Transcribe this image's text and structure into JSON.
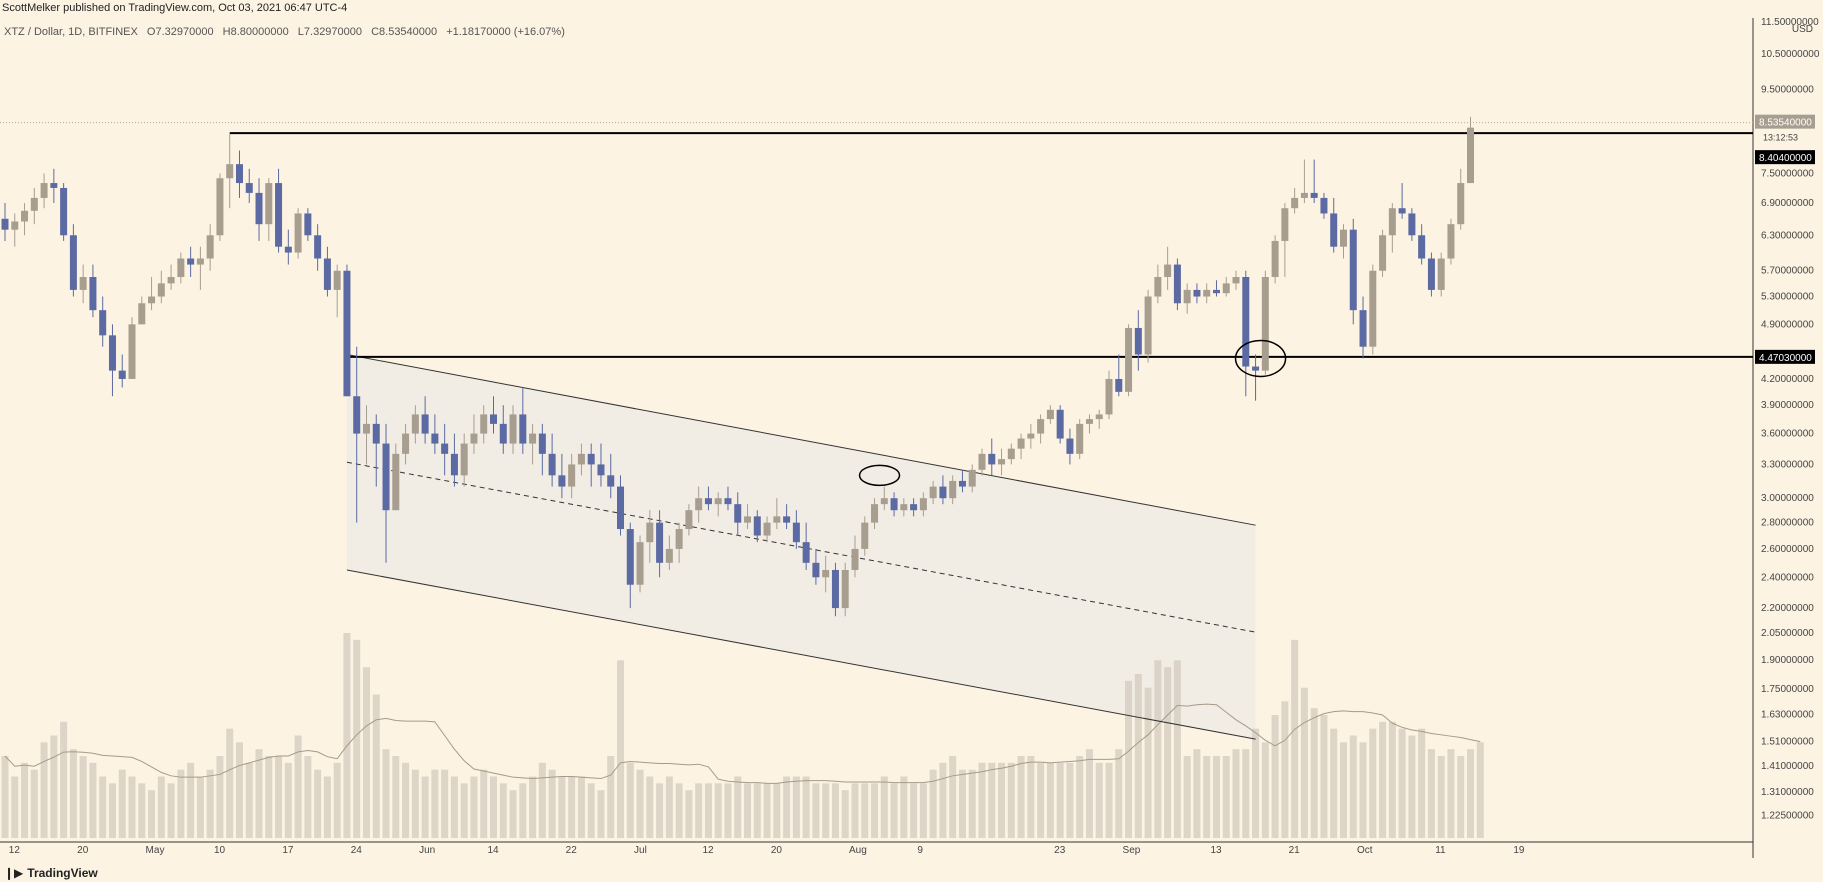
{
  "header": {
    "publisher": "ScottMelker published on TradingView.com, Oct 03, 2021 06:47 UTC-4"
  },
  "symbol": {
    "name": "XTZ / Dollar, 1D, BITFINEX",
    "open": "O7.32970000",
    "high": "H8.80000000",
    "low": "L7.32970000",
    "close": "C8.53540000",
    "change": "+1.18170000 (+16.07%)"
  },
  "currency": "USD",
  "footer": {
    "logo": "TradingView"
  },
  "colors": {
    "background": "#FCF3E3",
    "bull": "#A79E8F",
    "bear": "#5B6AA3",
    "volume": "#D7CFC2",
    "channel_fill": "#F0EBE3",
    "line": "#000000"
  },
  "price_labels": {
    "current": "8.53540000",
    "countdown": "13:12:53",
    "resistance": "8.40400000",
    "support": "4.47030000"
  },
  "chart_data": {
    "type": "candlestick",
    "title": "XTZ / Dollar, 1D, BITFINEX",
    "y_scale": "log",
    "ylim": [
      1.15,
      11.5
    ],
    "y_ticks": [
      "11.50000000",
      "10.50000000",
      "9.50000000",
      "8.40400000",
      "7.50000000",
      "6.90000000",
      "6.30000000",
      "5.70000000",
      "5.30000000",
      "4.90000000",
      "4.47030000",
      "4.20000000",
      "3.90000000",
      "3.60000000",
      "3.30000000",
      "3.00000000",
      "2.80000000",
      "2.60000000",
      "2.40000000",
      "2.20000000",
      "2.05000000",
      "1.90000000",
      "1.75000000",
      "1.63000000",
      "1.51000000",
      "1.41000000",
      "1.31000000",
      "1.22500000"
    ],
    "x_ticks": [
      "12",
      "20",
      "May",
      "10",
      "17",
      "24",
      "Jun",
      "14",
      "22",
      "Jul",
      "12",
      "20",
      "Aug",
      "9",
      "23",
      "Sep",
      "13",
      "21",
      "Oct",
      "11",
      "19"
    ],
    "horizontal_levels": [
      8.404,
      4.4703
    ],
    "candles": [
      [
        6.6,
        6.9,
        6.2,
        6.4
      ],
      [
        6.4,
        6.7,
        6.1,
        6.55
      ],
      [
        6.55,
        6.9,
        6.3,
        6.75
      ],
      [
        6.75,
        7.2,
        6.5,
        7.0
      ],
      [
        7.0,
        7.5,
        6.8,
        7.3
      ],
      [
        7.3,
        7.6,
        6.9,
        7.2
      ],
      [
        7.2,
        7.3,
        6.2,
        6.3
      ],
      [
        6.3,
        6.5,
        5.3,
        5.4
      ],
      [
        5.4,
        5.8,
        5.2,
        5.6
      ],
      [
        5.6,
        5.8,
        5.0,
        5.1
      ],
      [
        5.1,
        5.3,
        4.6,
        4.75
      ],
      [
        4.75,
        4.9,
        4.0,
        4.3
      ],
      [
        4.3,
        4.5,
        4.1,
        4.2
      ],
      [
        4.2,
        5.0,
        4.2,
        4.9
      ],
      [
        4.9,
        5.3,
        4.9,
        5.2
      ],
      [
        5.2,
        5.6,
        5.1,
        5.3
      ],
      [
        5.3,
        5.7,
        5.2,
        5.5
      ],
      [
        5.5,
        5.8,
        5.4,
        5.6
      ],
      [
        5.6,
        6.0,
        5.5,
        5.9
      ],
      [
        5.9,
        6.1,
        5.6,
        5.8
      ],
      [
        5.8,
        6.1,
        5.4,
        5.9
      ],
      [
        5.9,
        6.5,
        5.7,
        6.3
      ],
      [
        6.3,
        7.5,
        6.2,
        7.4
      ],
      [
        7.4,
        8.4,
        6.8,
        7.7
      ],
      [
        7.7,
        8.0,
        7.0,
        7.3
      ],
      [
        7.3,
        7.6,
        6.9,
        7.1
      ],
      [
        7.1,
        7.4,
        6.2,
        6.5
      ],
      [
        6.5,
        7.4,
        6.2,
        7.3
      ],
      [
        7.3,
        7.6,
        6.0,
        6.1
      ],
      [
        6.1,
        6.4,
        5.8,
        6.0
      ],
      [
        6.0,
        6.8,
        5.9,
        6.7
      ],
      [
        6.7,
        6.8,
        6.2,
        6.3
      ],
      [
        6.3,
        6.5,
        5.7,
        5.9
      ],
      [
        5.9,
        6.1,
        5.3,
        5.4
      ],
      [
        5.4,
        5.8,
        5.0,
        5.7
      ],
      [
        5.7,
        5.8,
        4.0,
        4.0
      ],
      [
        4.0,
        4.6,
        2.8,
        3.6
      ],
      [
        3.6,
        3.9,
        3.3,
        3.7
      ],
      [
        3.7,
        3.8,
        3.1,
        3.5
      ],
      [
        3.5,
        3.7,
        2.5,
        2.9
      ],
      [
        2.9,
        3.5,
        2.9,
        3.4
      ],
      [
        3.4,
        3.7,
        3.3,
        3.6
      ],
      [
        3.6,
        3.9,
        3.5,
        3.8
      ],
      [
        3.8,
        4.0,
        3.5,
        3.6
      ],
      [
        3.6,
        3.8,
        3.4,
        3.5
      ],
      [
        3.5,
        3.7,
        3.2,
        3.4
      ],
      [
        3.4,
        3.6,
        3.1,
        3.2
      ],
      [
        3.2,
        3.6,
        3.1,
        3.5
      ],
      [
        3.5,
        3.8,
        3.4,
        3.6
      ],
      [
        3.6,
        3.9,
        3.5,
        3.8
      ],
      [
        3.8,
        4.0,
        3.6,
        3.7
      ],
      [
        3.7,
        3.9,
        3.4,
        3.5
      ],
      [
        3.5,
        3.9,
        3.4,
        3.8
      ],
      [
        3.8,
        4.1,
        3.4,
        3.5
      ],
      [
        3.5,
        3.7,
        3.3,
        3.6
      ],
      [
        3.6,
        3.7,
        3.2,
        3.4
      ],
      [
        3.4,
        3.6,
        3.1,
        3.2
      ],
      [
        3.2,
        3.4,
        3.0,
        3.1
      ],
      [
        3.1,
        3.4,
        3.0,
        3.3
      ],
      [
        3.3,
        3.5,
        3.2,
        3.4
      ],
      [
        3.4,
        3.5,
        3.1,
        3.3
      ],
      [
        3.3,
        3.5,
        3.1,
        3.2
      ],
      [
        3.2,
        3.4,
        3.0,
        3.1
      ],
      [
        3.1,
        3.2,
        2.7,
        2.75
      ],
      [
        2.75,
        2.8,
        2.2,
        2.35
      ],
      [
        2.35,
        2.7,
        2.3,
        2.65
      ],
      [
        2.65,
        2.9,
        2.5,
        2.8
      ],
      [
        2.8,
        2.9,
        2.4,
        2.5
      ],
      [
        2.5,
        2.7,
        2.45,
        2.6
      ],
      [
        2.6,
        2.8,
        2.5,
        2.75
      ],
      [
        2.75,
        2.95,
        2.7,
        2.9
      ],
      [
        2.9,
        3.1,
        2.8,
        3.0
      ],
      [
        3.0,
        3.1,
        2.9,
        2.95
      ],
      [
        2.95,
        3.05,
        2.85,
        3.0
      ],
      [
        3.0,
        3.1,
        2.9,
        2.95
      ],
      [
        2.95,
        3.05,
        2.7,
        2.8
      ],
      [
        2.8,
        2.95,
        2.75,
        2.85
      ],
      [
        2.85,
        2.9,
        2.65,
        2.7
      ],
      [
        2.7,
        2.85,
        2.65,
        2.8
      ],
      [
        2.8,
        3.0,
        2.75,
        2.85
      ],
      [
        2.85,
        2.95,
        2.75,
        2.8
      ],
      [
        2.8,
        2.9,
        2.6,
        2.65
      ],
      [
        2.65,
        2.8,
        2.45,
        2.5
      ],
      [
        2.5,
        2.6,
        2.35,
        2.4
      ],
      [
        2.4,
        2.55,
        2.3,
        2.45
      ],
      [
        2.45,
        2.5,
        2.15,
        2.2
      ],
      [
        2.2,
        2.5,
        2.15,
        2.45
      ],
      [
        2.45,
        2.7,
        2.4,
        2.6
      ],
      [
        2.6,
        2.85,
        2.55,
        2.8
      ],
      [
        2.8,
        3.0,
        2.75,
        2.95
      ],
      [
        2.95,
        3.1,
        2.9,
        3.0
      ],
      [
        3.0,
        3.05,
        2.85,
        2.9
      ],
      [
        2.9,
        3.0,
        2.85,
        2.95
      ],
      [
        2.95,
        3.0,
        2.85,
        2.9
      ],
      [
        2.9,
        3.05,
        2.85,
        3.0
      ],
      [
        3.0,
        3.15,
        2.95,
        3.1
      ],
      [
        3.1,
        3.2,
        2.95,
        3.0
      ],
      [
        3.0,
        3.2,
        2.95,
        3.15
      ],
      [
        3.15,
        3.25,
        3.05,
        3.1
      ],
      [
        3.1,
        3.3,
        3.05,
        3.25
      ],
      [
        3.25,
        3.45,
        3.2,
        3.4
      ],
      [
        3.4,
        3.55,
        3.2,
        3.3
      ],
      [
        3.3,
        3.45,
        3.2,
        3.35
      ],
      [
        3.35,
        3.5,
        3.3,
        3.45
      ],
      [
        3.45,
        3.6,
        3.35,
        3.55
      ],
      [
        3.55,
        3.7,
        3.45,
        3.6
      ],
      [
        3.6,
        3.8,
        3.5,
        3.75
      ],
      [
        3.75,
        3.9,
        3.7,
        3.85
      ],
      [
        3.85,
        3.9,
        3.5,
        3.55
      ],
      [
        3.55,
        3.65,
        3.3,
        3.4
      ],
      [
        3.4,
        3.75,
        3.35,
        3.7
      ],
      [
        3.7,
        3.8,
        3.6,
        3.75
      ],
      [
        3.75,
        3.85,
        3.65,
        3.8
      ],
      [
        3.8,
        4.3,
        3.75,
        4.2
      ],
      [
        4.2,
        4.5,
        4.0,
        4.05
      ],
      [
        4.05,
        4.9,
        4.0,
        4.85
      ],
      [
        4.85,
        5.1,
        4.3,
        4.5
      ],
      [
        4.5,
        5.4,
        4.4,
        5.3
      ],
      [
        5.3,
        5.8,
        5.2,
        5.6
      ],
      [
        5.6,
        6.1,
        5.4,
        5.8
      ],
      [
        5.8,
        5.9,
        5.1,
        5.2
      ],
      [
        5.2,
        5.5,
        5.05,
        5.4
      ],
      [
        5.4,
        5.5,
        5.2,
        5.3
      ],
      [
        5.3,
        5.5,
        5.2,
        5.4
      ],
      [
        5.4,
        5.55,
        5.3,
        5.35
      ],
      [
        5.35,
        5.6,
        5.3,
        5.5
      ],
      [
        5.5,
        5.7,
        5.4,
        5.6
      ],
      [
        5.6,
        5.7,
        4.0,
        4.35
      ],
      [
        4.35,
        4.5,
        3.95,
        4.3
      ],
      [
        4.3,
        5.7,
        4.25,
        5.6
      ],
      [
        5.6,
        6.3,
        5.5,
        6.2
      ],
      [
        6.2,
        6.9,
        5.6,
        6.8
      ],
      [
        6.8,
        7.2,
        6.7,
        7.0
      ],
      [
        7.0,
        7.8,
        6.9,
        7.1
      ],
      [
        7.1,
        7.8,
        6.9,
        7.0
      ],
      [
        7.0,
        7.1,
        6.6,
        6.7
      ],
      [
        6.7,
        7.0,
        6.0,
        6.1
      ],
      [
        6.1,
        6.5,
        5.9,
        6.4
      ],
      [
        6.4,
        6.6,
        4.9,
        5.1
      ],
      [
        5.1,
        5.3,
        4.45,
        4.6
      ],
      [
        4.6,
        5.8,
        4.5,
        5.7
      ],
      [
        5.7,
        6.4,
        5.6,
        6.3
      ],
      [
        6.3,
        6.9,
        6.0,
        6.8
      ],
      [
        6.8,
        7.3,
        6.6,
        6.7
      ],
      [
        6.7,
        6.8,
        6.2,
        6.3
      ],
      [
        6.3,
        6.5,
        5.8,
        5.9
      ],
      [
        5.9,
        6.0,
        5.3,
        5.4
      ],
      [
        5.4,
        6.0,
        5.3,
        5.9
      ],
      [
        5.9,
        6.6,
        5.8,
        6.5
      ],
      [
        6.5,
        7.6,
        6.4,
        7.3
      ],
      [
        7.3,
        8.8,
        7.3,
        8.5354
      ]
    ],
    "volume": [
      12,
      9,
      11,
      10,
      14,
      15,
      17,
      13,
      12,
      11,
      9,
      8,
      10,
      9,
      8,
      7,
      9,
      8,
      10,
      11,
      9,
      10,
      12,
      16,
      14,
      11,
      13,
      12,
      12,
      11,
      15,
      12,
      10,
      9,
      11,
      30,
      29,
      25,
      21,
      13,
      12,
      11,
      10,
      9,
      10,
      10,
      9,
      8,
      9,
      10,
      9,
      8,
      7,
      8,
      9,
      11,
      10,
      9,
      9,
      9,
      8,
      7,
      12,
      26,
      11,
      10,
      9,
      8,
      9,
      8,
      7,
      8,
      8,
      8,
      8,
      9,
      8,
      8,
      8,
      8,
      9,
      9,
      9,
      8,
      8,
      8,
      7,
      8,
      8,
      8,
      9,
      8,
      9,
      8,
      8,
      10,
      11,
      12,
      10,
      10,
      11,
      11,
      11,
      11,
      12,
      12,
      11,
      11,
      11,
      11,
      12,
      13,
      11,
      11,
      13,
      23,
      24,
      22,
      26,
      25,
      26,
      12,
      13,
      12,
      12,
      12,
      13,
      13,
      16,
      14,
      18,
      20,
      29,
      22,
      19,
      18,
      16,
      14,
      15,
      14,
      16,
      17,
      17,
      16,
      15,
      16,
      13,
      12,
      13,
      12,
      13,
      14
    ]
  }
}
